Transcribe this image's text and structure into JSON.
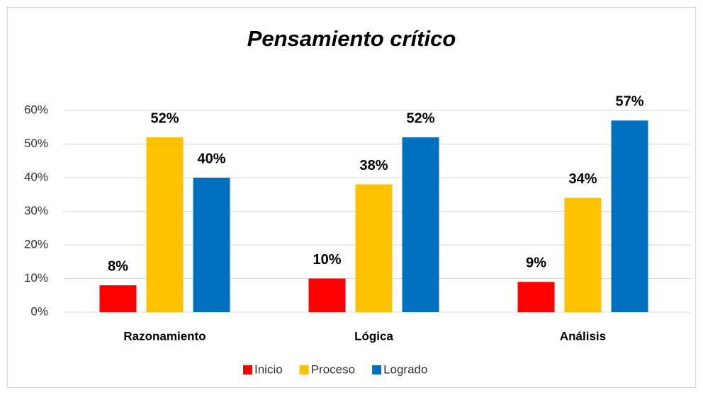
{
  "chart_data": {
    "type": "bar",
    "title": "Pensamiento crítico",
    "categories": [
      "Razonamiento",
      "Lógica",
      "Análisis"
    ],
    "series": [
      {
        "name": "Inicio",
        "color": "#ff0000",
        "values": [
          8,
          10,
          9
        ],
        "value_labels": [
          "8%",
          "10%",
          "9%"
        ]
      },
      {
        "name": "Proceso",
        "color": "#ffc000",
        "values": [
          52,
          38,
          34
        ],
        "value_labels": [
          "52%",
          "38%",
          "34%"
        ]
      },
      {
        "name": "Logrado",
        "color": "#0070c0",
        "values": [
          40,
          52,
          57
        ],
        "value_labels": [
          "40%",
          "52%",
          "57%"
        ]
      }
    ],
    "ylim": [
      0,
      60
    ],
    "yticks": [
      {
        "value": 0,
        "label": "0%"
      },
      {
        "value": 10,
        "label": "10%"
      },
      {
        "value": 20,
        "label": "20%"
      },
      {
        "value": 30,
        "label": "30%"
      },
      {
        "value": 40,
        "label": "40%"
      },
      {
        "value": 50,
        "label": "50%"
      },
      {
        "value": 60,
        "label": "60%"
      }
    ],
    "grid": true,
    "legend": "bottom"
  }
}
